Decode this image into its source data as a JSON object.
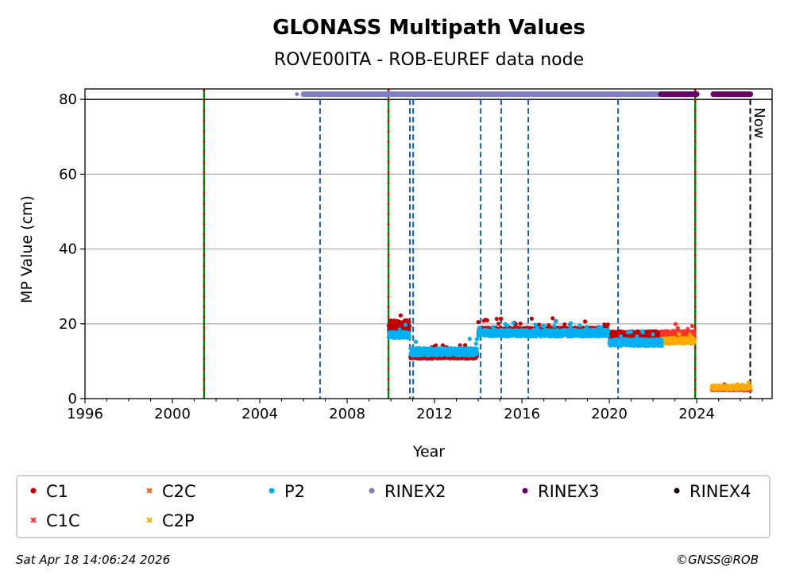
{
  "chart_data": {
    "type": "scatter",
    "title": "GLONASS Multipath Values",
    "subtitle": "ROVE00ITA - ROB-EUREF data node",
    "xlabel": "Year",
    "ylabel": "MP Value (cm)",
    "xlim": [
      1996,
      2027.45
    ],
    "ylim": [
      0,
      82.8
    ],
    "xticks": [
      "1996",
      "2000",
      "2004",
      "2008",
      "2012",
      "2016",
      "2020",
      "2024"
    ],
    "yticks": [
      "0",
      "20",
      "40",
      "60",
      "80"
    ],
    "grid": "horizontal",
    "now_label": "Now",
    "now_year": 2026.45,
    "receiver_change_years": [
      2001.45,
      2009.89,
      2023.93
    ],
    "antenna_change_years": [
      2006.76,
      2010.87,
      2011.02,
      2014.11,
      2015.05,
      2016.29,
      2020.4
    ],
    "series": [
      {
        "name": "C1",
        "color": "#c00000",
        "marker": "dot",
        "segments": [
          {
            "from": 2009.9,
            "to": 2010.85,
            "mean": 19.5,
            "spread": 1.5
          },
          {
            "from": 2010.9,
            "to": 2013.95,
            "mean": 11.5,
            "spread": 0.8
          },
          {
            "from": 2014.0,
            "to": 2019.95,
            "mean": 18.0,
            "spread": 1.0
          },
          {
            "from": 2020.0,
            "to": 2022.4,
            "mean": 17.2,
            "spread": 0.8
          }
        ]
      },
      {
        "name": "C1C",
        "color": "#ff3030",
        "marker": "x",
        "segments": [
          {
            "from": 2022.4,
            "to": 2023.9,
            "mean": 17.2,
            "spread": 0.9
          },
          {
            "from": 2024.7,
            "to": 2026.45,
            "mean": 2.6,
            "spread": 0.4
          }
        ]
      },
      {
        "name": "C2C",
        "color": "#ff6000",
        "marker": "x",
        "segments": []
      },
      {
        "name": "C2P",
        "color": "#ffaa00",
        "marker": "x",
        "segments": [
          {
            "from": 2022.4,
            "to": 2023.9,
            "mean": 15.5,
            "spread": 0.8
          },
          {
            "from": 2024.7,
            "to": 2026.45,
            "mean": 3.0,
            "spread": 0.5
          }
        ]
      },
      {
        "name": "P2",
        "color": "#00b0f0",
        "marker": "dot",
        "segments": [
          {
            "from": 2009.9,
            "to": 2010.85,
            "mean": 17.0,
            "spread": 0.8
          },
          {
            "from": 2010.9,
            "to": 2013.95,
            "mean": 12.5,
            "spread": 1.0
          },
          {
            "from": 2014.0,
            "to": 2019.95,
            "mean": 17.5,
            "spread": 0.9
          },
          {
            "from": 2020.0,
            "to": 2022.4,
            "mean": 15.0,
            "spread": 0.9
          }
        ]
      },
      {
        "name": "RINEX2",
        "color": "#8080c0",
        "marker": "dot",
        "band": [
          [
            2005.7,
            2005.72
          ],
          [
            2006.0,
            2022.3
          ]
        ],
        "level": 81.4
      },
      {
        "name": "RINEX3",
        "color": "#660066",
        "marker": "dot",
        "band": [
          [
            2022.36,
            2024.0
          ],
          [
            2024.76,
            2026.45
          ]
        ],
        "level": 81.4
      },
      {
        "name": "RINEX4",
        "color": "#1a0010",
        "marker": "dot",
        "band": [],
        "level": 81.4
      }
    ],
    "legend": {
      "placement": "bottom",
      "entries": [
        "C1",
        "C2C",
        "P2",
        "RINEX2",
        "RINEX3",
        "RINEX4",
        "C1C",
        "C2P"
      ]
    }
  },
  "footer": {
    "timestamp": "Sat Apr 18 14:06:24 2026",
    "credit": "©GNSS@ROB"
  }
}
